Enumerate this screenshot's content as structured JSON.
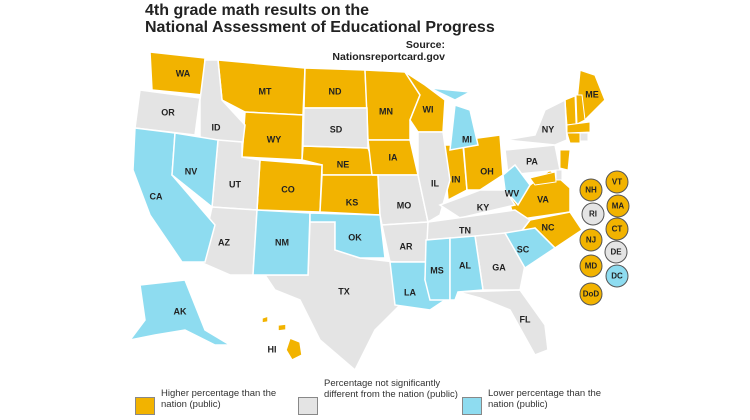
{
  "title_lines": [
    "4th grade math results on the",
    "National Assessment of Educational Progress"
  ],
  "source": "Source: Nationsreportcard.gov",
  "groups": [
    {
      "label": "Higher percentage than the nation (public)",
      "color": "#f2b300",
      "states": [
        "WA",
        "MT",
        "ND",
        "MN",
        "WI",
        "WY",
        "NE",
        "IA",
        "IN",
        "OH",
        "CO",
        "KS",
        "VA",
        "NC",
        "ME",
        "HI"
      ],
      "insets": [
        "NH",
        "VT",
        "MA",
        "CT",
        "NJ",
        "MD",
        "DoD"
      ]
    },
    {
      "label": "Percentage not significantly different from the nation (public)",
      "color": "#e4e4e4",
      "states": [
        "OR",
        "ID",
        "SD",
        "UT",
        "AZ",
        "MO",
        "IL",
        "KY",
        "TN",
        "AR",
        "TX",
        "GA",
        "FL",
        "PA",
        "NY"
      ],
      "insets": [
        "RI",
        "DE"
      ]
    },
    {
      "label": "Lower percentage than the nation (public)",
      "color": "#8edcf0",
      "states": [
        "CA",
        "NV",
        "NM",
        "OK",
        "MI",
        "WV",
        "LA",
        "MS",
        "AL",
        "SC",
        "AK"
      ],
      "insets": [
        "DC"
      ]
    }
  ]
}
